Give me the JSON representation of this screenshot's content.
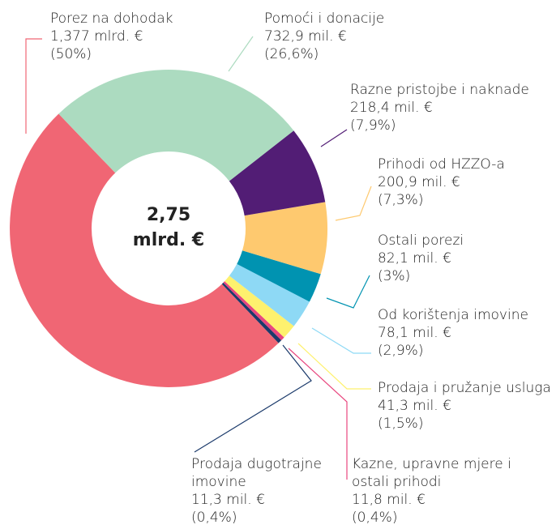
{
  "chart_data": {
    "type": "donut",
    "center_label": [
      "2,75",
      "mlrd. €"
    ],
    "categories": [
      "Pomoći i donacije",
      "Razne pristojbe i naknade",
      "Prihodi od HZZO-a",
      "Ostali porezi",
      "Od korištenja imovine",
      "Prodaja i pružanje usluga",
      "Kazne, upravne mjere i ostali prihodi",
      "Prodaja dugotrajne imovine",
      "Porez na dohodak"
    ],
    "amounts": [
      "732,9 mil. €",
      "218,4 mil. €",
      "200,9 mil. €",
      "82,1 mil. €",
      "78,1 mil. €",
      "41,3 mil. €",
      "11,8 mil. €",
      "11,3 mil. €",
      "1,377 mlrd. €"
    ],
    "values": [
      26.6,
      7.9,
      7.3,
      3,
      2.9,
      1.5,
      0.4,
      0.4,
      50
    ],
    "value_labels": [
      "(26,6%)",
      "(7,9%)",
      "(7,3%)",
      "(3%)",
      "(2,9%)",
      "(1,5%)",
      "(0,4%)",
      "(0,4%)",
      "(50%)"
    ],
    "colors": [
      "#acdbc0",
      "#521d75",
      "#fec96f",
      "#0093b1",
      "#8ed9f5",
      "#fef16e",
      "#e8467f",
      "#1b3a6b",
      "#f06674"
    ]
  }
}
